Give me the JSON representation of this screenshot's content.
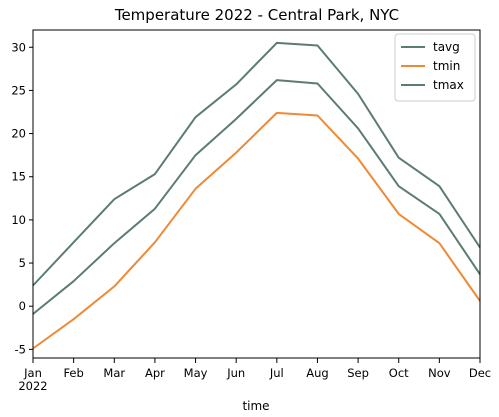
{
  "chart_data": {
    "type": "line",
    "title": "Temperature 2022 - Central Park, NYC",
    "xlabel": "time",
    "ylabel": "",
    "categories": [
      "Jan",
      "Feb",
      "Mar",
      "Apr",
      "May",
      "Jun",
      "Jul",
      "Aug",
      "Sep",
      "Oct",
      "Nov",
      "Dec"
    ],
    "year_label": "2022",
    "ylim": [
      -6.0,
      32.0
    ],
    "yticks": [
      -5,
      0,
      5,
      10,
      15,
      20,
      25,
      30
    ],
    "grid": false,
    "legend_position": "top-right",
    "series": [
      {
        "name": "tavg",
        "color": "#5a7d6e",
        "values": [
          -0.9,
          2.9,
          7.3,
          11.3,
          17.5,
          21.7,
          26.2,
          25.8,
          20.6,
          13.9,
          10.7,
          3.7
        ]
      },
      {
        "name": "tmin",
        "color": "#ee8a35",
        "values": [
          -4.9,
          -1.5,
          2.3,
          7.4,
          13.6,
          17.8,
          22.4,
          22.1,
          17.1,
          10.7,
          7.3,
          0.6
        ]
      },
      {
        "name": "tmax",
        "color": "#5a7d6e",
        "values": [
          2.4,
          7.4,
          12.4,
          15.3,
          21.9,
          25.7,
          30.5,
          30.2,
          24.6,
          17.2,
          13.9,
          6.8
        ]
      }
    ]
  }
}
